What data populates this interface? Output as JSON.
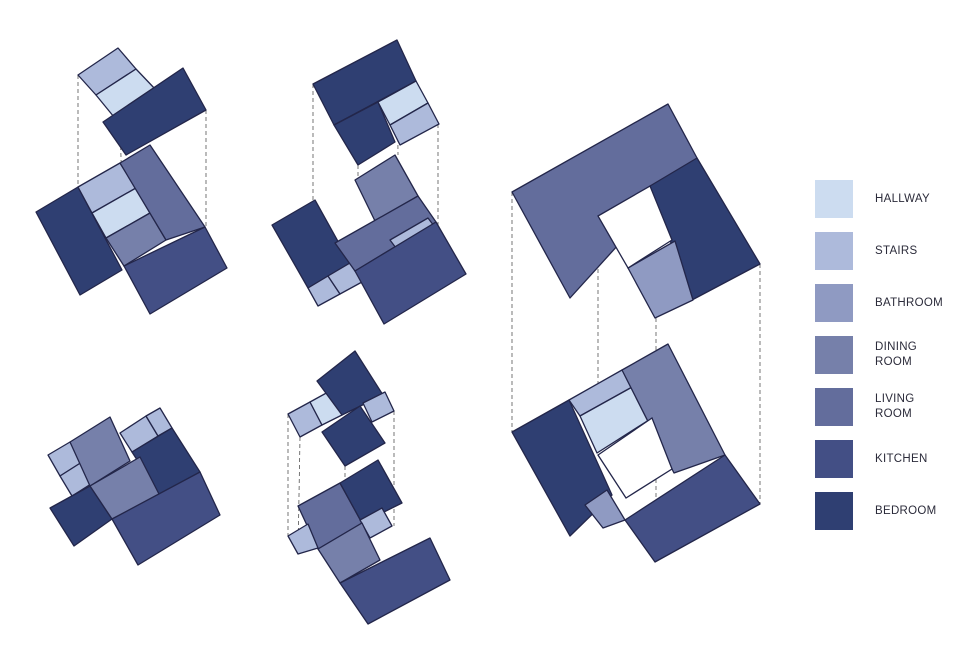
{
  "legend": [
    {
      "key": "hallway",
      "label": "HALLWAY",
      "color": "#ccdcf0"
    },
    {
      "key": "stairs",
      "label": "STAIRS",
      "color": "#adbadb"
    },
    {
      "key": "bathroom",
      "label": "BATHROOM",
      "color": "#8f9ac2"
    },
    {
      "key": "dining",
      "label": "DINING\nROOM",
      "color": "#7680aa"
    },
    {
      "key": "living",
      "label": "LIVING\nROOM",
      "color": "#636d9c"
    },
    {
      "key": "kitchen",
      "label": "KITCHEN",
      "color": "#434f85"
    },
    {
      "key": "bedroom",
      "label": "BEDROOM",
      "color": "#2f3f72"
    }
  ],
  "colors": {
    "edge": "#23264a",
    "guide_line": "#555555",
    "void": "#ffffff"
  },
  "floor_plans": [
    {
      "name": "plan-1-upper",
      "rooms": [
        "stairs",
        "hallway",
        "bedroom"
      ]
    },
    {
      "name": "plan-1-lower",
      "rooms": [
        "bedroom",
        "stairs",
        "hallway",
        "dining",
        "living",
        "kitchen"
      ]
    },
    {
      "name": "plan-2-upper",
      "rooms": [
        "bedroom",
        "bedroom",
        "hallway",
        "stairs"
      ]
    },
    {
      "name": "plan-2-lower",
      "rooms": [
        "bedroom",
        "stairs",
        "stairs",
        "dining",
        "living",
        "stairs",
        "kitchen"
      ]
    },
    {
      "name": "plan-3-upper",
      "rooms": [
        "living",
        "bedroom",
        "bathroom"
      ]
    },
    {
      "name": "plan-3-lower",
      "rooms": [
        "bedroom",
        "stairs",
        "hallway",
        "dining",
        "bathroom",
        "kitchen"
      ]
    },
    {
      "name": "plan-4",
      "rooms": [
        "stairs",
        "stairs",
        "dining",
        "stairs",
        "stairs",
        "bedroom",
        "bedroom",
        "dining",
        "kitchen"
      ]
    },
    {
      "name": "plan-5-upper",
      "rooms": [
        "stairs",
        "hallway",
        "bedroom",
        "bedroom",
        "stairs"
      ]
    },
    {
      "name": "plan-5-lower",
      "rooms": [
        "living",
        "bedroom",
        "stairs",
        "stairs",
        "dining",
        "kitchen"
      ]
    }
  ]
}
